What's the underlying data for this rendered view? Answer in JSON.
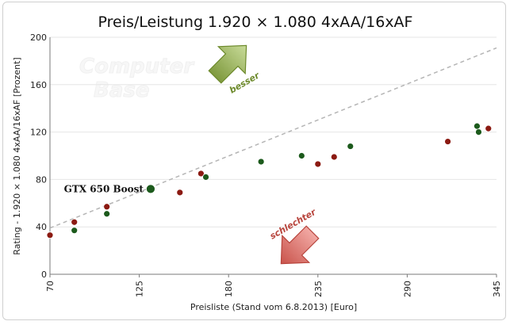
{
  "chart_data": {
    "type": "scatter",
    "title": "Preis/Leistung 1.920 × 1.080 4xAA/16xAF",
    "xlabel": "Preisliste (Stand vom 6.8.2013) [Euro]",
    "ylabel": "Rating - 1.920 × 1.080 4xAA/16xAF [Prozent]",
    "xlim": [
      70,
      345
    ],
    "ylim": [
      0,
      200
    ],
    "xticks": [
      "70",
      "125",
      "180",
      "235",
      "290",
      "345"
    ],
    "yticks": [
      "0",
      "40",
      "80",
      "120",
      "160",
      "200"
    ],
    "grid": "horizontal",
    "legend": "none",
    "trend_line": {
      "x": [
        70,
        345
      ],
      "y": [
        39,
        191
      ]
    },
    "highlight_label": "GTX 650 Boost",
    "arrow_up_label": "besser",
    "arrow_down_label": "schlechter",
    "watermark": "ComputerBase",
    "series": [
      {
        "color": "#8b1a12",
        "points": [
          {
            "x": 70,
            "y": 33
          },
          {
            "x": 85,
            "y": 44
          },
          {
            "x": 105,
            "y": 57
          },
          {
            "x": 150,
            "y": 69
          },
          {
            "x": 163,
            "y": 85
          },
          {
            "x": 235,
            "y": 93
          },
          {
            "x": 245,
            "y": 99
          },
          {
            "x": 315,
            "y": 112
          },
          {
            "x": 340,
            "y": 123
          }
        ]
      },
      {
        "color": "#1c5a1c",
        "points": [
          {
            "x": 85,
            "y": 37
          },
          {
            "x": 105,
            "y": 51
          },
          {
            "x": 166,
            "y": 82
          },
          {
            "x": 200,
            "y": 95
          },
          {
            "x": 225,
            "y": 100
          },
          {
            "x": 255,
            "y": 108
          },
          {
            "x": 333,
            "y": 125
          },
          {
            "x": 334,
            "y": 120
          }
        ]
      },
      {
        "color": "#1c5a1c",
        "highlight": true,
        "points": [
          {
            "x": 132,
            "y": 72
          }
        ]
      }
    ]
  }
}
